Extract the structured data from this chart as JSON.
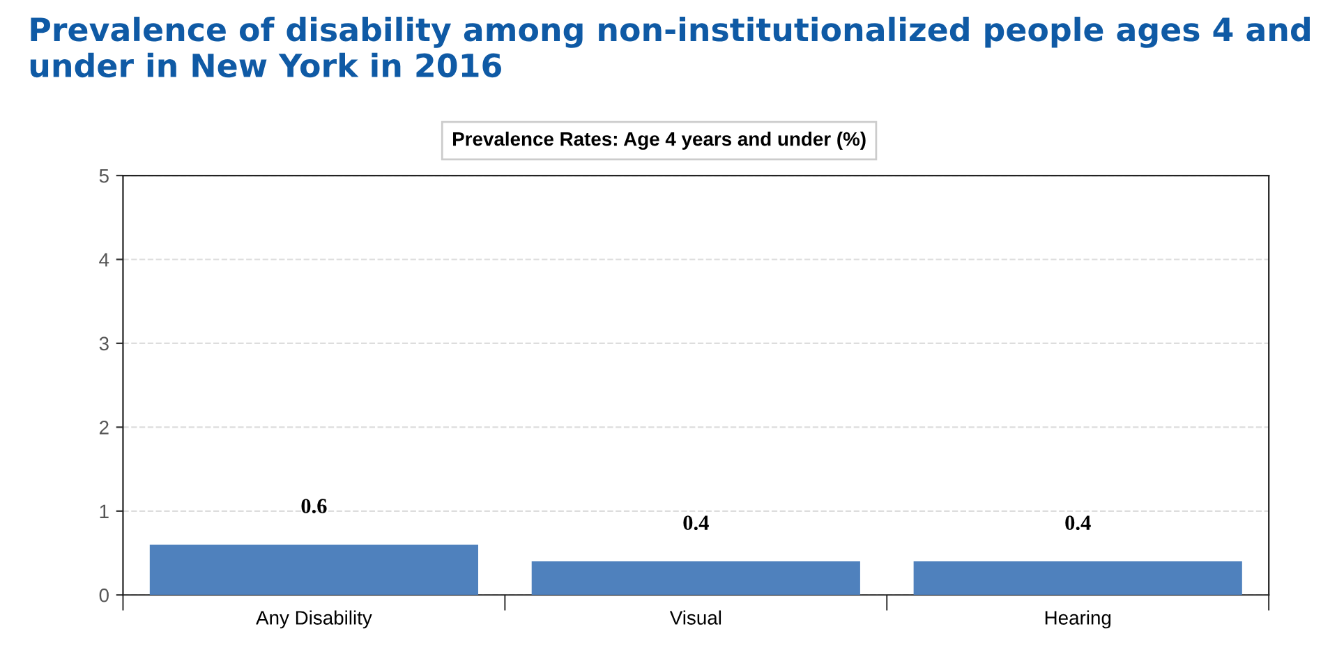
{
  "chart_data": {
    "type": "bar",
    "title": "Prevalence of disability among non-institutionalized people ages 4 and under in New York in 2016",
    "subtitle": "Prevalence Rates: Age 4 years and under (%)",
    "categories": [
      "Any Disability",
      "Visual",
      "Hearing"
    ],
    "values": [
      0.6,
      0.4,
      0.4
    ],
    "color": "#4f81bd",
    "ylim": [
      0,
      5
    ],
    "yticks": [
      0,
      1,
      2,
      3,
      4,
      5
    ],
    "grid": "y",
    "data_labels": true
  }
}
